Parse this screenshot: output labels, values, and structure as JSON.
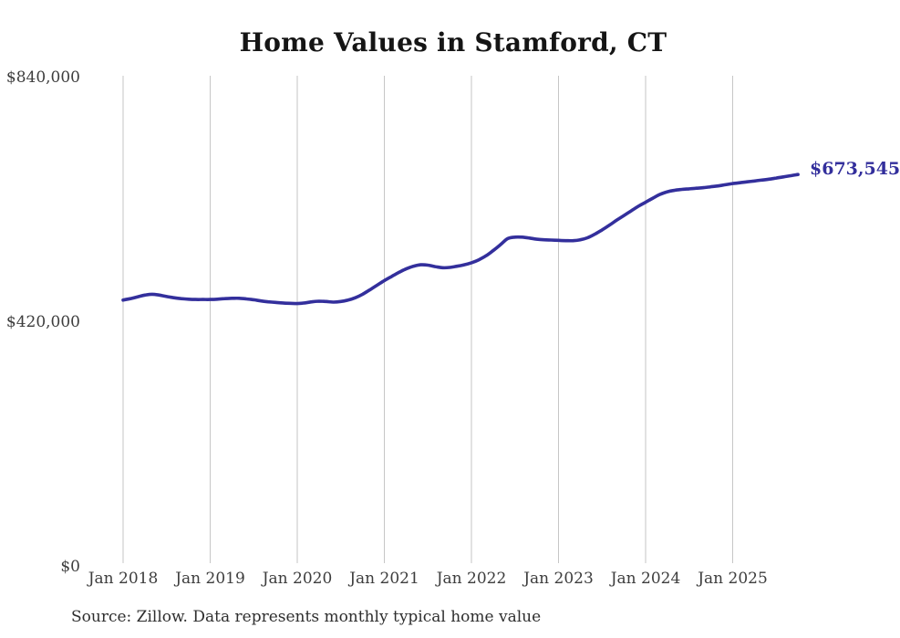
{
  "chart_data": {
    "type": "line",
    "title": "Home Values in Stamford, CT",
    "source_note": "Source: Zillow. Data represents monthly typical home value",
    "end_label": "$673,545",
    "end_value": 673545,
    "legend": "none",
    "grid": "vertical lines at each January, no horizontal gridlines",
    "axis_lines": "none",
    "grid_color": "#c6c6c6",
    "x_tick_labels": [
      "Jan 2018",
      "Jan 2019",
      "Jan 2020",
      "Jan 2021",
      "Jan 2022",
      "Jan 2023",
      "Jan 2024",
      "Jan 2025"
    ],
    "y_tick_labels": [
      "$840,000",
      "$420,000",
      "$0"
    ],
    "y_tick_values": [
      840000,
      420000,
      0
    ],
    "ylim": [
      0,
      840000
    ],
    "x_start": "Jan 2018",
    "x_end": "Oct 2025",
    "x_interval": "month",
    "series": [
      {
        "name": "Monthly typical home value",
        "color": "#332f9c",
        "values": [
          458000,
          460500,
          463500,
          466500,
          468000,
          466500,
          464000,
          462000,
          460500,
          459500,
          459000,
          459000,
          459000,
          459500,
          460500,
          461000,
          461000,
          460000,
          458500,
          456500,
          455000,
          454000,
          453000,
          452500,
          452000,
          453000,
          455000,
          456000,
          455500,
          454500,
          455500,
          458000,
          462000,
          468000,
          475500,
          483500,
          491500,
          498500,
          505500,
          511500,
          516000,
          518500,
          518000,
          515500,
          513500,
          514000,
          516000,
          518500,
          522000,
          527000,
          534000,
          543000,
          553000,
          563500,
          566000,
          566000,
          564500,
          562500,
          561500,
          561000,
          560500,
          560000,
          560000,
          561500,
          565000,
          571000,
          578500,
          586500,
          595000,
          603000,
          611000,
          619000,
          626000,
          633000,
          639500,
          644000,
          646500,
          648000,
          649000,
          650000,
          651000,
          652500,
          654000,
          656000,
          658000,
          659500,
          661000,
          662500,
          664000,
          665500,
          667500,
          669500,
          671500,
          673545
        ]
      }
    ]
  }
}
